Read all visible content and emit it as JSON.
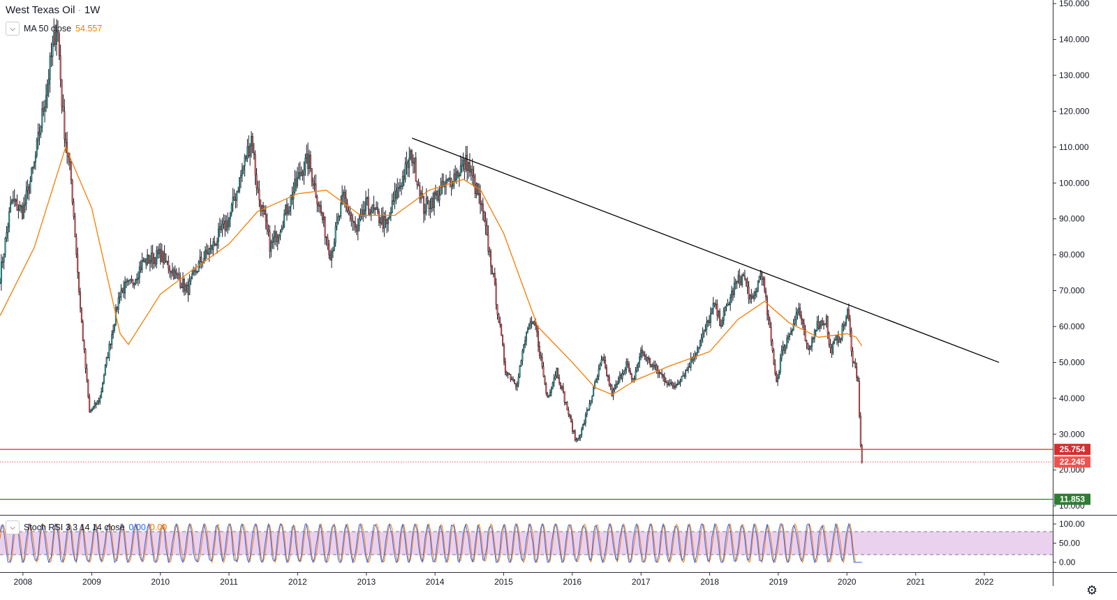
{
  "header": {
    "symbol": "West Texas Oil",
    "separator": "·",
    "interval": "1W"
  },
  "indicators": {
    "ma": {
      "label": "MA 50 close",
      "value": "54.557"
    },
    "stoch": {
      "label": "Stoch RSI 3 3 14 14 close",
      "k_value": "0.00",
      "d_value": "0.00"
    }
  },
  "colors": {
    "up": "#26a69a",
    "down": "#ef5350",
    "wick": "#131722",
    "ma": "#f57c00",
    "support": "#d32f2f",
    "support_low": "#2e7d32",
    "trendline": "#000000",
    "stoch_k": "#2962ff",
    "stoch_d": "#f57c00",
    "stoch_band": "#e1bee7"
  },
  "price_labels": [
    {
      "value": "25.754",
      "color": "#d32f2f"
    },
    {
      "value": "22.245",
      "color": "#ef5350"
    },
    {
      "value": "11.853",
      "color": "#2e7d32"
    }
  ],
  "chart_data": {
    "type": "candlestick",
    "title": "West Texas Oil · 1W",
    "x_axis": {
      "type": "date",
      "ticks": [
        "2008",
        "2009",
        "2010",
        "2011",
        "2012",
        "2013",
        "2014",
        "2015",
        "2016",
        "2017",
        "2018",
        "2019",
        "2020",
        "2021",
        "2022"
      ],
      "range": [
        "2007-09-01",
        "2022-12-31"
      ]
    },
    "y_axis": {
      "ticks": [
        "150.000",
        "140.000",
        "130.000",
        "120.000",
        "110.000",
        "100.000",
        "90.000",
        "80.000",
        "70.000",
        "60.000",
        "50.000",
        "40.000",
        "30.000",
        "20.000",
        "10.000"
      ],
      "range": [
        7.5,
        151
      ]
    },
    "price_path": [
      [
        "2007-09-01",
        74
      ],
      [
        "2007-11-01",
        95
      ],
      [
        "2008-01-01",
        92
      ],
      [
        "2008-03-01",
        105
      ],
      [
        "2008-05-01",
        125
      ],
      [
        "2008-07-01",
        145
      ],
      [
        "2008-08-01",
        118
      ],
      [
        "2008-09-15",
        100
      ],
      [
        "2008-11-01",
        65
      ],
      [
        "2008-12-20",
        36
      ],
      [
        "2009-02-15",
        40
      ],
      [
        "2009-03-01",
        45
      ],
      [
        "2009-06-01",
        70
      ],
      [
        "2009-08-01",
        72
      ],
      [
        "2009-10-01",
        78
      ],
      [
        "2010-01-01",
        80
      ],
      [
        "2010-05-25",
        70
      ],
      [
        "2010-08-01",
        78
      ],
      [
        "2010-10-01",
        82
      ],
      [
        "2011-01-01",
        90
      ],
      [
        "2011-05-01",
        113
      ],
      [
        "2011-06-01",
        98
      ],
      [
        "2011-08-10",
        82
      ],
      [
        "2011-10-01",
        88
      ],
      [
        "2012-02-01",
        105
      ],
      [
        "2012-03-01",
        106
      ],
      [
        "2012-06-25",
        80
      ],
      [
        "2012-09-01",
        96
      ],
      [
        "2012-11-10",
        86
      ],
      [
        "2013-01-01",
        94
      ],
      [
        "2013-04-20",
        88
      ],
      [
        "2013-06-01",
        96
      ],
      [
        "2013-09-01",
        108
      ],
      [
        "2013-11-01",
        93
      ],
      [
        "2014-01-01",
        96
      ],
      [
        "2014-06-20",
        106
      ],
      [
        "2014-09-01",
        94
      ],
      [
        "2014-11-01",
        76
      ],
      [
        "2015-01-10",
        48
      ],
      [
        "2015-03-10",
        44
      ],
      [
        "2015-05-10",
        60
      ],
      [
        "2015-06-20",
        60
      ],
      [
        "2015-08-20",
        40
      ],
      [
        "2015-10-10",
        48
      ],
      [
        "2016-01-20",
        28
      ],
      [
        "2016-02-20",
        31
      ],
      [
        "2016-06-10",
        51
      ],
      [
        "2016-08-01",
        41
      ],
      [
        "2016-10-15",
        50
      ],
      [
        "2016-11-15",
        44
      ],
      [
        "2017-01-01",
        53
      ],
      [
        "2017-03-20",
        48
      ],
      [
        "2017-06-20",
        43
      ],
      [
        "2017-09-01",
        48
      ],
      [
        "2017-12-01",
        58
      ],
      [
        "2018-01-25",
        66
      ],
      [
        "2018-03-01",
        61
      ],
      [
        "2018-05-20",
        72
      ],
      [
        "2018-07-01",
        74
      ],
      [
        "2018-08-15",
        66
      ],
      [
        "2018-10-03",
        76
      ],
      [
        "2018-12-24",
        44
      ],
      [
        "2019-01-15",
        52
      ],
      [
        "2019-04-20",
        65
      ],
      [
        "2019-06-10",
        52
      ],
      [
        "2019-07-15",
        60
      ],
      [
        "2019-09-15",
        62
      ],
      [
        "2019-10-01",
        53
      ],
      [
        "2019-12-01",
        58
      ],
      [
        "2020-01-06",
        64
      ],
      [
        "2020-02-01",
        51
      ],
      [
        "2020-03-01",
        45
      ],
      [
        "2020-03-09",
        32
      ],
      [
        "2020-03-18",
        22
      ],
      [
        "2020-03-25",
        22.2
      ]
    ],
    "ma_path": [
      [
        "2007-09-01",
        63
      ],
      [
        "2008-03-01",
        82
      ],
      [
        "2008-08-15",
        110
      ],
      [
        "2009-01-01",
        93
      ],
      [
        "2009-06-01",
        58
      ],
      [
        "2009-07-15",
        55
      ],
      [
        "2010-01-01",
        69
      ],
      [
        "2010-06-01",
        75
      ],
      [
        "2011-01-01",
        83
      ],
      [
        "2011-06-01",
        92
      ],
      [
        "2012-01-01",
        97
      ],
      [
        "2012-06-01",
        98
      ],
      [
        "2012-12-01",
        91
      ],
      [
        "2013-06-01",
        91
      ],
      [
        "2013-12-01",
        98
      ],
      [
        "2014-06-01",
        101
      ],
      [
        "2014-09-01",
        98
      ],
      [
        "2015-01-01",
        86
      ],
      [
        "2015-07-01",
        60
      ],
      [
        "2016-01-01",
        50
      ],
      [
        "2016-05-01",
        43
      ],
      [
        "2016-08-01",
        41
      ],
      [
        "2016-12-01",
        45
      ],
      [
        "2017-06-01",
        49
      ],
      [
        "2018-01-01",
        53
      ],
      [
        "2018-06-01",
        62
      ],
      [
        "2018-10-20",
        67
      ],
      [
        "2019-03-01",
        61
      ],
      [
        "2019-08-01",
        57
      ],
      [
        "2020-01-01",
        58
      ],
      [
        "2020-02-20",
        57
      ],
      [
        "2020-03-20",
        54.6
      ]
    ],
    "trendline": {
      "from": [
        "2013-09-01",
        112.5
      ],
      "to": [
        "2022-03-20",
        50
      ]
    },
    "horizontal_levels": [
      25.754,
      22.245,
      11.853
    ],
    "stoch_rsi": {
      "range": [
        0,
        100
      ],
      "ticks": [
        "100.00",
        "50.00",
        "0.00"
      ],
      "bands": [
        20,
        80
      ],
      "k_last": 0.0,
      "d_last": 0.0
    }
  }
}
